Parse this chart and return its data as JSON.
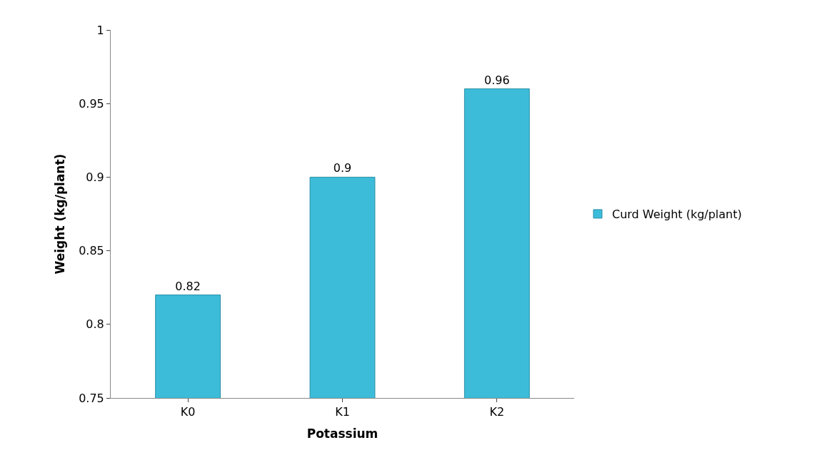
{
  "chart_data": {
    "type": "bar",
    "xlabel": "Potassium",
    "ylabel": "Weight (kg/plant)",
    "categories": [
      "K0",
      "K1",
      "K2"
    ],
    "series": [
      {
        "name": "Curd Weight (kg/plant)",
        "color": "#3cbcd9",
        "values": [
          0.82,
          0.9,
          0.96
        ]
      }
    ],
    "ylim": [
      0.75,
      1
    ],
    "yticks": [
      0.75,
      0.8,
      0.85,
      0.9,
      0.95,
      1
    ],
    "data_labels": true,
    "legend": "right"
  }
}
